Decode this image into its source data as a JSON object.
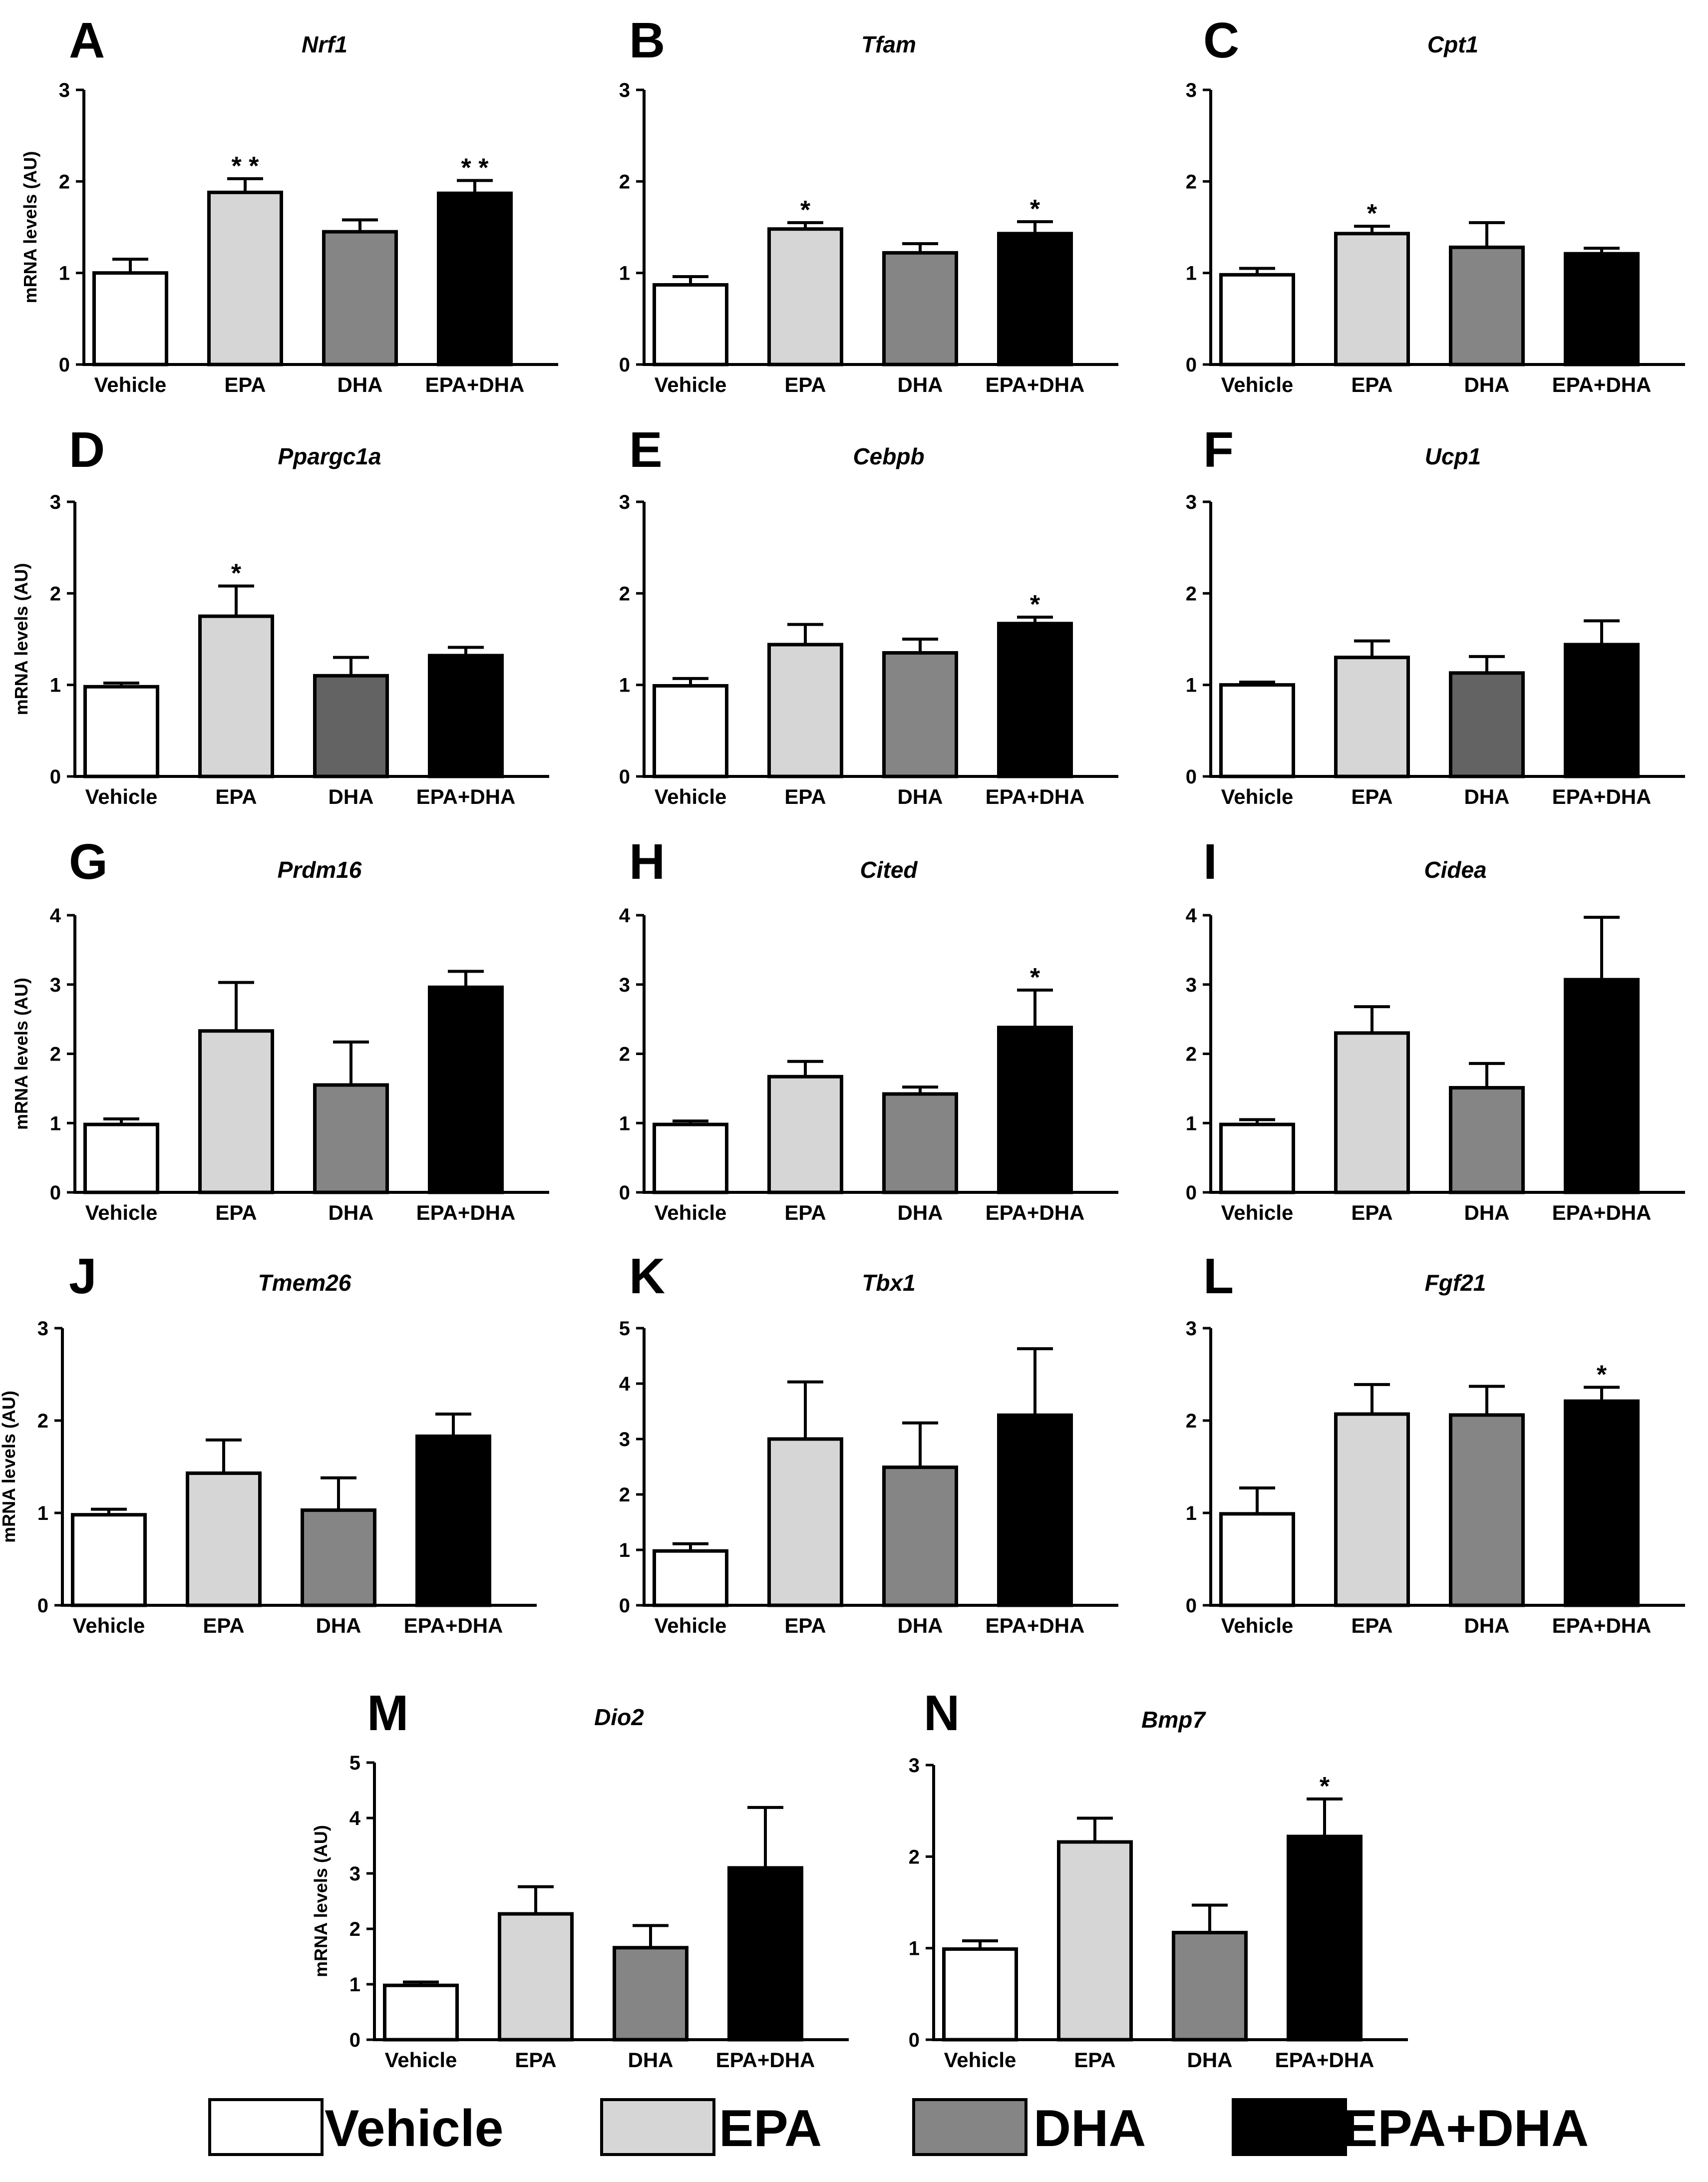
{
  "colors": {
    "Vehicle": "#ffffff",
    "EPA": "#d6d6d6",
    "DHA": "#858585",
    "DHA_dark": "#636363",
    "EPA+DHA": "#000000"
  },
  "legend": {
    "items": [
      {
        "label": "Vehicle",
        "color": "#ffffff"
      },
      {
        "label": "EPA",
        "color": "#d6d6d6"
      },
      {
        "label": "DHA",
        "color": "#858585"
      },
      {
        "label": "EPA+DHA",
        "color": "#000000"
      }
    ]
  },
  "chart_data": [
    {
      "type": "bar",
      "panel": "A",
      "title": "Nrf1",
      "ylabel": "mRNA levels (AU)",
      "categories": [
        "Vehicle",
        "EPA",
        "DHA",
        "EPA+DHA"
      ],
      "values": [
        1.0,
        1.88,
        1.45,
        1.87
      ],
      "errors": [
        0.15,
        0.15,
        0.13,
        0.14
      ],
      "significance": [
        "",
        "* *",
        "",
        "* *"
      ],
      "ylim": [
        0,
        3
      ],
      "yticks": [
        0,
        1,
        2,
        3
      ]
    },
    {
      "type": "bar",
      "panel": "B",
      "title": "Tfam",
      "ylabel": "",
      "categories": [
        "Vehicle",
        "EPA",
        "DHA",
        "EPA+DHA"
      ],
      "values": [
        0.87,
        1.48,
        1.22,
        1.43
      ],
      "errors": [
        0.09,
        0.07,
        0.1,
        0.13
      ],
      "significance": [
        "",
        "*",
        "",
        "*"
      ],
      "ylim": [
        0,
        3
      ],
      "yticks": [
        0,
        1,
        2,
        3
      ]
    },
    {
      "type": "bar",
      "panel": "C",
      "title": "Cpt1",
      "ylabel": "",
      "categories": [
        "Vehicle",
        "EPA",
        "DHA",
        "EPA+DHA"
      ],
      "values": [
        0.98,
        1.43,
        1.28,
        1.21
      ],
      "errors": [
        0.07,
        0.08,
        0.27,
        0.06
      ],
      "significance": [
        "",
        "*",
        "",
        ""
      ],
      "ylim": [
        0,
        3
      ],
      "yticks": [
        0,
        1,
        2,
        3
      ]
    },
    {
      "type": "bar",
      "panel": "D",
      "title": "Ppargc1a",
      "ylabel": "mRNA levels (AU)",
      "categories": [
        "Vehicle",
        "EPA",
        "DHA",
        "EPA+DHA"
      ],
      "values": [
        0.98,
        1.75,
        1.1,
        1.32
      ],
      "errors": [
        0.04,
        0.33,
        0.2,
        0.09
      ],
      "significance": [
        "",
        "*",
        "",
        ""
      ],
      "ylim": [
        0,
        3
      ],
      "yticks": [
        0,
        1,
        2,
        3
      ]
    },
    {
      "type": "bar",
      "panel": "E",
      "title": "Cebpb",
      "ylabel": "",
      "categories": [
        "Vehicle",
        "EPA",
        "DHA",
        "EPA+DHA"
      ],
      "values": [
        0.99,
        1.44,
        1.35,
        1.67
      ],
      "errors": [
        0.08,
        0.22,
        0.15,
        0.07
      ],
      "significance": [
        "",
        "",
        "",
        "*"
      ],
      "ylim": [
        0,
        3
      ],
      "yticks": [
        0,
        1,
        2,
        3
      ]
    },
    {
      "type": "bar",
      "panel": "F",
      "title": "Ucp1",
      "ylabel": "",
      "categories": [
        "Vehicle",
        "EPA",
        "DHA",
        "EPA+DHA"
      ],
      "values": [
        1.0,
        1.3,
        1.13,
        1.44
      ],
      "errors": [
        0.03,
        0.18,
        0.18,
        0.26
      ],
      "significance": [
        "",
        "",
        "",
        ""
      ],
      "ylim": [
        0,
        3
      ],
      "yticks": [
        0,
        1,
        2,
        3
      ]
    },
    {
      "type": "bar",
      "panel": "G",
      "title": "Prdm16",
      "ylabel": "mRNA levels (AU)",
      "categories": [
        "Vehicle",
        "EPA",
        "DHA",
        "EPA+DHA"
      ],
      "values": [
        0.98,
        2.33,
        1.55,
        2.96
      ],
      "errors": [
        0.08,
        0.7,
        0.62,
        0.23
      ],
      "significance": [
        "",
        "",
        "",
        ""
      ],
      "ylim": [
        0,
        4
      ],
      "yticks": [
        0,
        1,
        2,
        3,
        4
      ]
    },
    {
      "type": "bar",
      "panel": "H",
      "title": "Cited",
      "ylabel": "",
      "categories": [
        "Vehicle",
        "EPA",
        "DHA",
        "EPA+DHA"
      ],
      "values": [
        0.98,
        1.67,
        1.42,
        2.38
      ],
      "errors": [
        0.05,
        0.22,
        0.1,
        0.54
      ],
      "significance": [
        "",
        "",
        "",
        "*"
      ],
      "ylim": [
        0,
        4
      ],
      "yticks": [
        0,
        1,
        2,
        3,
        4
      ]
    },
    {
      "type": "bar",
      "panel": "I",
      "title": "Cidea",
      "ylabel": "",
      "categories": [
        "Vehicle",
        "EPA",
        "DHA",
        "EPA+DHA"
      ],
      "values": [
        0.98,
        2.3,
        1.51,
        3.07
      ],
      "errors": [
        0.07,
        0.38,
        0.35,
        0.9
      ],
      "significance": [
        "",
        "",
        "",
        ""
      ],
      "ylim": [
        0,
        4
      ],
      "yticks": [
        0,
        1,
        2,
        3,
        4
      ]
    },
    {
      "type": "bar",
      "panel": "J",
      "title": "Tmem26",
      "ylabel": "mRNA levels (AU)",
      "categories": [
        "Vehicle",
        "EPA",
        "DHA",
        "EPA+DHA"
      ],
      "values": [
        0.98,
        1.43,
        1.03,
        1.83
      ],
      "errors": [
        0.06,
        0.36,
        0.35,
        0.24
      ],
      "significance": [
        "",
        "",
        "",
        ""
      ],
      "ylim": [
        0,
        3
      ],
      "yticks": [
        0,
        1,
        2,
        3
      ]
    },
    {
      "type": "bar",
      "panel": "K",
      "title": "Tbx1",
      "ylabel": "",
      "categories": [
        "Vehicle",
        "EPA",
        "DHA",
        "EPA+DHA"
      ],
      "values": [
        0.98,
        3.0,
        2.49,
        3.43
      ],
      "errors": [
        0.13,
        1.03,
        0.8,
        1.2
      ],
      "significance": [
        "",
        "",
        "",
        ""
      ],
      "ylim": [
        0,
        5
      ],
      "yticks": [
        0,
        1,
        2,
        3,
        4,
        5
      ]
    },
    {
      "type": "bar",
      "panel": "L",
      "title": "Fgf21",
      "ylabel": "",
      "categories": [
        "Vehicle",
        "EPA",
        "DHA",
        "EPA+DHA"
      ],
      "values": [
        0.99,
        2.07,
        2.06,
        2.21
      ],
      "errors": [
        0.28,
        0.32,
        0.31,
        0.15
      ],
      "significance": [
        "",
        "",
        "",
        "*"
      ],
      "ylim": [
        0,
        3
      ],
      "yticks": [
        0,
        1,
        2,
        3
      ]
    },
    {
      "type": "bar",
      "panel": "M",
      "title": "Dio2",
      "ylabel": "mRNA levels (AU)",
      "categories": [
        "Vehicle",
        "EPA",
        "DHA",
        "EPA+DHA"
      ],
      "values": [
        0.98,
        2.27,
        1.66,
        3.1
      ],
      "errors": [
        0.06,
        0.49,
        0.4,
        1.09
      ],
      "significance": [
        "",
        "",
        "",
        ""
      ],
      "ylim": [
        0,
        5
      ],
      "yticks": [
        0,
        1,
        2,
        3,
        4,
        5
      ]
    },
    {
      "type": "bar",
      "panel": "N",
      "title": "Bmp7",
      "ylabel": "",
      "categories": [
        "Vehicle",
        "EPA",
        "DHA",
        "EPA+DHA"
      ],
      "values": [
        0.99,
        2.16,
        1.17,
        2.22
      ],
      "errors": [
        0.09,
        0.26,
        0.3,
        0.41
      ],
      "significance": [
        "",
        "",
        "",
        "*"
      ],
      "ylim": [
        0,
        3
      ],
      "yticks": [
        0,
        1,
        2,
        3
      ]
    }
  ]
}
